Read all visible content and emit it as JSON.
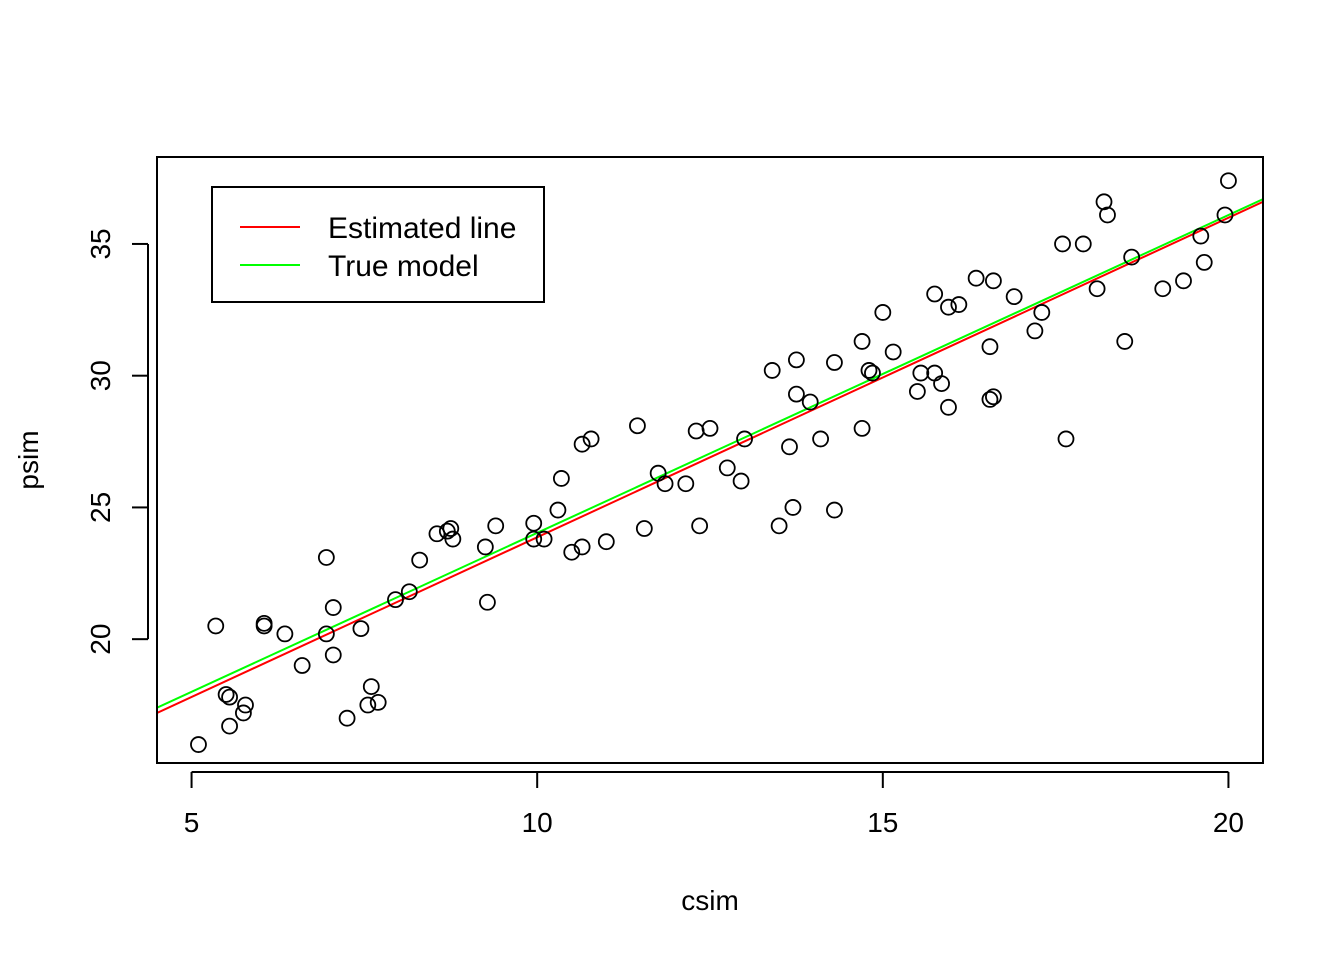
{
  "chart_data": {
    "type": "scatter",
    "title": "",
    "xlabel": "csim",
    "ylabel": "psim",
    "xlim": [
      4.5,
      20.5
    ],
    "ylim": [
      15.3,
      38.3
    ],
    "x_ticks": [
      5,
      10,
      15,
      20
    ],
    "y_ticks": [
      20,
      25,
      30,
      35
    ],
    "grid": false,
    "legend": {
      "position": "top-left",
      "entries": [
        {
          "label": "Estimated line",
          "color": "#ff0000"
        },
        {
          "label": "True model",
          "color": "#00ff00"
        }
      ]
    },
    "lines": [
      {
        "name": "Estimated line",
        "color": "#ff0000",
        "x": [
          4.5,
          20.5
        ],
        "y": [
          17.2,
          36.6
        ]
      },
      {
        "name": "True model",
        "color": "#00ff00",
        "x": [
          4.5,
          20.5
        ],
        "y": [
          17.4,
          36.7
        ]
      }
    ],
    "points": [
      [
        5.1,
        16.0
      ],
      [
        5.35,
        20.5
      ],
      [
        5.5,
        17.9
      ],
      [
        5.55,
        16.7
      ],
      [
        5.55,
        17.8
      ],
      [
        5.75,
        17.2
      ],
      [
        5.78,
        17.5
      ],
      [
        6.05,
        20.6
      ],
      [
        6.05,
        20.5
      ],
      [
        6.35,
        20.2
      ],
      [
        6.6,
        19.0
      ],
      [
        6.95,
        23.1
      ],
      [
        6.95,
        20.2
      ],
      [
        7.05,
        21.2
      ],
      [
        7.05,
        19.4
      ],
      [
        7.25,
        17.0
      ],
      [
        7.45,
        20.4
      ],
      [
        7.55,
        17.5
      ],
      [
        7.6,
        18.2
      ],
      [
        7.7,
        17.6
      ],
      [
        7.95,
        21.5
      ],
      [
        8.15,
        21.8
      ],
      [
        8.3,
        23.0
      ],
      [
        8.55,
        24.0
      ],
      [
        8.7,
        24.1
      ],
      [
        8.75,
        24.2
      ],
      [
        8.78,
        23.8
      ],
      [
        9.25,
        23.5
      ],
      [
        9.28,
        21.4
      ],
      [
        9.4,
        24.3
      ],
      [
        9.95,
        24.4
      ],
      [
        9.95,
        23.8
      ],
      [
        10.1,
        23.8
      ],
      [
        10.3,
        24.9
      ],
      [
        10.35,
        26.1
      ],
      [
        10.5,
        23.3
      ],
      [
        10.65,
        27.4
      ],
      [
        10.65,
        23.5
      ],
      [
        10.78,
        27.6
      ],
      [
        11.0,
        23.7
      ],
      [
        11.45,
        28.1
      ],
      [
        11.55,
        24.2
      ],
      [
        11.75,
        26.3
      ],
      [
        11.85,
        25.9
      ],
      [
        12.15,
        25.9
      ],
      [
        12.3,
        27.9
      ],
      [
        12.35,
        24.3
      ],
      [
        12.5,
        28.0
      ],
      [
        12.75,
        26.5
      ],
      [
        12.95,
        26.0
      ],
      [
        13.0,
        27.6
      ],
      [
        13.4,
        30.2
      ],
      [
        13.5,
        24.3
      ],
      [
        13.65,
        27.3
      ],
      [
        13.7,
        25.0
      ],
      [
        13.75,
        30.6
      ],
      [
        13.75,
        29.3
      ],
      [
        13.95,
        29.0
      ],
      [
        14.1,
        27.6
      ],
      [
        14.3,
        30.5
      ],
      [
        14.3,
        24.9
      ],
      [
        14.7,
        31.3
      ],
      [
        14.7,
        28.0
      ],
      [
        14.8,
        30.2
      ],
      [
        14.85,
        30.1
      ],
      [
        15.0,
        32.4
      ],
      [
        15.15,
        30.9
      ],
      [
        15.5,
        29.4
      ],
      [
        15.55,
        30.1
      ],
      [
        15.75,
        33.1
      ],
      [
        15.75,
        30.1
      ],
      [
        15.85,
        29.7
      ],
      [
        15.95,
        28.8
      ],
      [
        15.95,
        32.6
      ],
      [
        16.1,
        32.7
      ],
      [
        16.35,
        33.7
      ],
      [
        16.55,
        29.1
      ],
      [
        16.55,
        31.1
      ],
      [
        16.6,
        33.6
      ],
      [
        16.6,
        29.2
      ],
      [
        16.9,
        33.0
      ],
      [
        17.2,
        31.7
      ],
      [
        17.3,
        32.4
      ],
      [
        17.6,
        35.0
      ],
      [
        17.65,
        27.6
      ],
      [
        17.9,
        35.0
      ],
      [
        18.1,
        33.3
      ],
      [
        18.2,
        36.6
      ],
      [
        18.25,
        36.1
      ],
      [
        18.5,
        31.3
      ],
      [
        18.6,
        34.5
      ],
      [
        19.05,
        33.3
      ],
      [
        19.35,
        33.6
      ],
      [
        19.6,
        35.3
      ],
      [
        19.65,
        34.3
      ],
      [
        19.95,
        36.1
      ],
      [
        20.0,
        37.4
      ]
    ]
  }
}
